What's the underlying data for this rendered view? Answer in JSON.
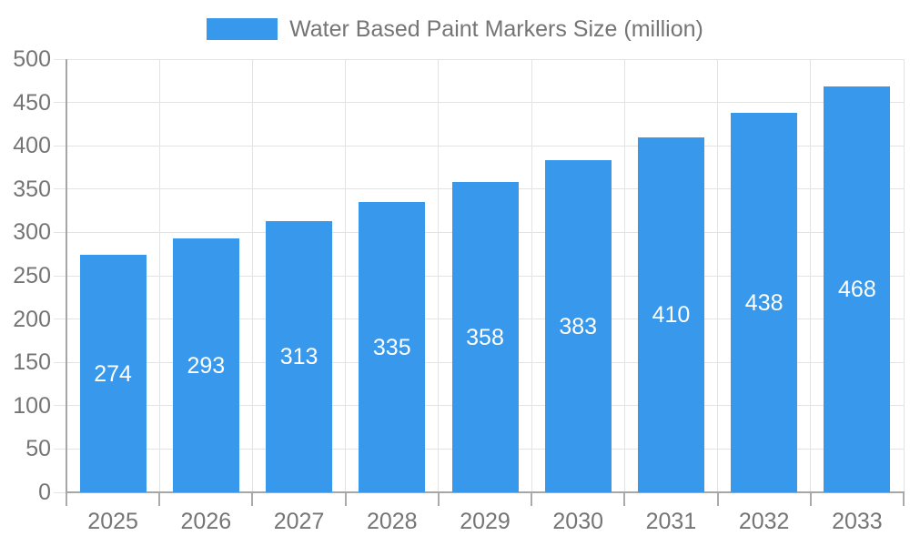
{
  "legend": {
    "label": "Water Based Paint Markers Size (million)"
  },
  "chart_data": {
    "type": "bar",
    "title": "",
    "categories": [
      "2025",
      "2026",
      "2027",
      "2028",
      "2029",
      "2030",
      "2031",
      "2032",
      "2033"
    ],
    "values": [
      274,
      293,
      313,
      335,
      358,
      383,
      410,
      438,
      468
    ],
    "series": [
      {
        "name": "Water Based Paint Markers Size (million)",
        "values": [
          274,
          293,
          313,
          335,
          358,
          383,
          410,
          438,
          468
        ]
      }
    ],
    "xlabel": "",
    "ylabel": "",
    "ylim": [
      0,
      500
    ],
    "y_ticks": [
      0,
      50,
      100,
      150,
      200,
      250,
      300,
      350,
      400,
      450,
      500
    ],
    "grid": true,
    "legend_position": "top",
    "value_labels": "inside-center",
    "colors": {
      "bar": "#3898EC",
      "value_label": "#FFFFFF",
      "axis_label": "#757575",
      "grid_line": "#E3E3E3",
      "axis_line": "#A6A6A6",
      "tick": "#ABABAB",
      "background": "#FFFFFF"
    }
  }
}
